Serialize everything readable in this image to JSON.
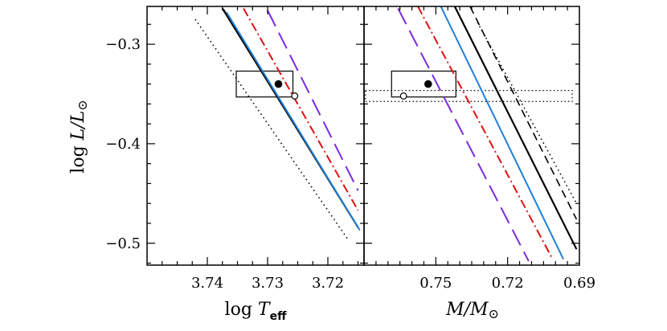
{
  "chart_data": [
    {
      "type": "line",
      "panel": "left",
      "xlabel_prefix": "log ",
      "xlabel_symbol": "T",
      "xlabel_subscript": "eff",
      "ylabel_prefix": "log ",
      "ylabel_symbol": "L/L",
      "ylabel_sun": "⊙",
      "xlim": [
        3.75,
        3.714
      ],
      "ylim": [
        -0.522,
        -0.262
      ],
      "x_inverted": true,
      "xticks": [
        3.74,
        3.73,
        3.72
      ],
      "xtick_labels": [
        "3.74",
        "3.73",
        "3.72"
      ],
      "yticks": [
        -0.3,
        -0.4,
        -0.5
      ],
      "ytick_labels": [
        "−0.3",
        "−0.4",
        "−0.5"
      ],
      "series": [
        {
          "style": "solid",
          "color": "#000000",
          "width": 2.2,
          "x": [
            3.7375,
            3.715
          ],
          "y": [
            -0.264,
            -0.484
          ]
        },
        {
          "style": "dashed",
          "color": "#000000",
          "width": 1.6,
          "x": [
            3.7373,
            3.7149
          ],
          "y": [
            -0.265,
            -0.485
          ]
        },
        {
          "style": "solid",
          "color": "#1f7fd8",
          "width": 2.0,
          "x": [
            3.7368,
            3.7147
          ],
          "y": [
            -0.268,
            -0.487
          ]
        },
        {
          "style": "dotted",
          "color": "#000000",
          "width": 1.6,
          "x": [
            3.742,
            3.7168
          ],
          "y": [
            -0.275,
            -0.495
          ]
        },
        {
          "style": "dashdot",
          "color": "#e01010",
          "width": 2.0,
          "x": [
            3.734,
            3.715
          ],
          "y": [
            -0.264,
            -0.467
          ]
        },
        {
          "style": "longdash",
          "color": "#7a2be0",
          "width": 2.0,
          "x": [
            3.73,
            3.715
          ],
          "y": [
            -0.266,
            -0.447
          ]
        }
      ],
      "box": {
        "x": [
          3.7258,
          3.7352
        ],
        "y": [
          -0.353,
          -0.327
        ]
      },
      "points": [
        {
          "kind": "filled",
          "x": 3.7282,
          "y": -0.34
        },
        {
          "kind": "open",
          "x": 3.7255,
          "y": -0.352
        }
      ]
    },
    {
      "type": "line",
      "panel": "right",
      "xlabel_symbol": "M/M",
      "xlabel_sun": "⊙",
      "xlim": [
        0.78,
        0.69
      ],
      "ylim": [
        -0.522,
        -0.262
      ],
      "x_inverted": true,
      "xticks": [
        0.75,
        0.72,
        0.69
      ],
      "xtick_labels": [
        "0.75",
        "0.72",
        "0.69"
      ],
      "series": [
        {
          "style": "solid",
          "color": "#000000",
          "width": 2.2,
          "x": [
            0.7421,
            0.6912
          ],
          "y": [
            -0.262,
            -0.506
          ]
        },
        {
          "style": "dashed",
          "color": "#000000",
          "width": 1.6,
          "x": [
            0.7357,
            0.6912
          ],
          "y": [
            -0.262,
            -0.476
          ]
        },
        {
          "style": "solid",
          "color": "#1f7fd8",
          "width": 2.0,
          "x": [
            0.7479,
            0.6967
          ],
          "y": [
            -0.262,
            -0.516
          ]
        },
        {
          "style": "dotted",
          "color": "#000000",
          "width": 1.6,
          "x": [
            0.7326,
            0.6912
          ],
          "y": [
            -0.278,
            -0.46
          ]
        },
        {
          "style": "dashdot",
          "color": "#e01010",
          "width": 2.0,
          "x": [
            0.7575,
            0.7012
          ],
          "y": [
            -0.262,
            -0.516
          ]
        },
        {
          "style": "longdash",
          "color": "#7a2be0",
          "width": 2.0,
          "x": [
            0.7658,
            0.7112
          ],
          "y": [
            -0.264,
            -0.518
          ]
        }
      ],
      "box": {
        "x": [
          0.7416,
          0.7685
        ],
        "y": [
          -0.353,
          -0.327
        ]
      },
      "band": {
        "x": [
          0.693,
          0.7794
        ],
        "y": [
          -0.3575,
          -0.3465
        ]
      },
      "points": [
        {
          "kind": "filled",
          "x": 0.7532,
          "y": -0.34
        },
        {
          "kind": "open",
          "x": 0.7635,
          "y": -0.352
        }
      ]
    }
  ]
}
